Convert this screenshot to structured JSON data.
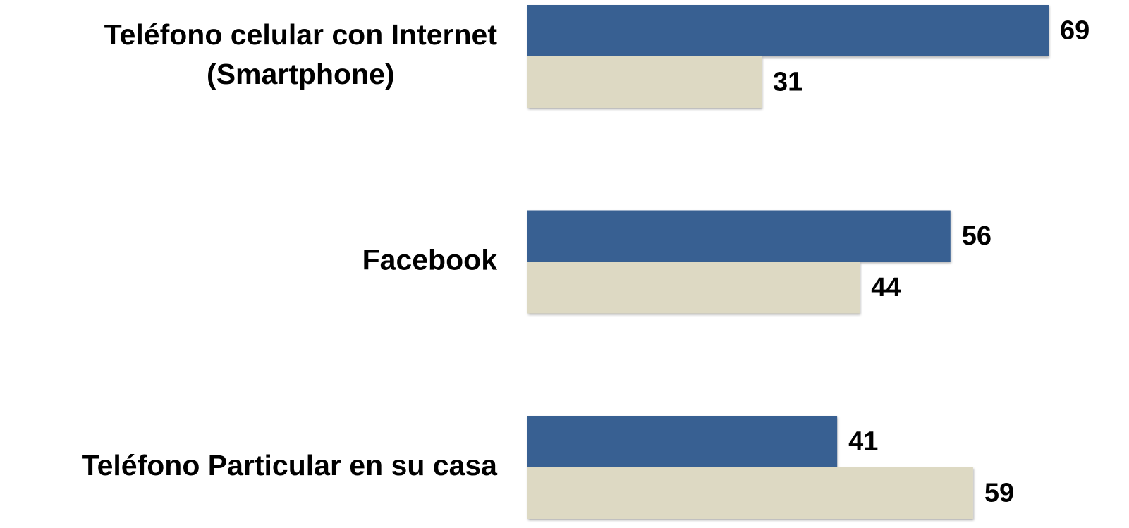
{
  "chart_data": {
    "type": "bar",
    "orientation": "horizontal",
    "categories": [
      "Teléfono celular con Internet (Smartphone)",
      "Facebook",
      "Teléfono Particular en su casa"
    ],
    "series": [
      {
        "color": "#386192",
        "values": [
          69,
          56,
          41
        ]
      },
      {
        "color": "#ddd9c3",
        "values": [
          31,
          44,
          59
        ]
      }
    ]
  }
}
